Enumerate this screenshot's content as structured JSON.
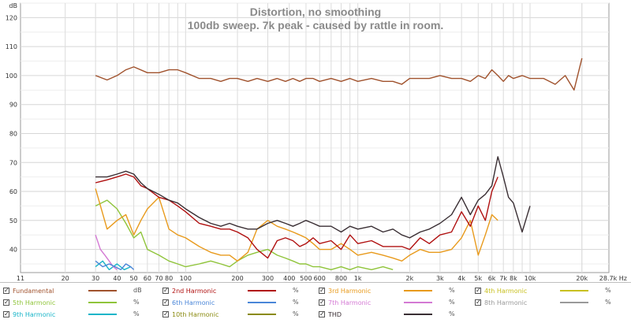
{
  "chart_data": {
    "type": "line",
    "title": "Distortion, no smoothing",
    "subtitle": "100db sweep. 7k peak - caused by rattle in room.",
    "ylabel_unit": "dB",
    "xlabel_unit": "28.7k Hz",
    "xscale": "log",
    "xlim": [
      11,
      28700
    ],
    "ylim": [
      32,
      125
    ],
    "grid": true,
    "y_ticks": [
      "40",
      "50",
      "60",
      "70",
      "80",
      "90",
      "100",
      "110",
      "120"
    ],
    "x_ticks": [
      {
        "v": 11,
        "t": "11"
      },
      {
        "v": 20,
        "t": "20"
      },
      {
        "v": 30,
        "t": "30"
      },
      {
        "v": 40,
        "t": "40"
      },
      {
        "v": 50,
        "t": "50"
      },
      {
        "v": 60,
        "t": "60"
      },
      {
        "v": 70,
        "t": "70"
      },
      {
        "v": 80,
        "t": "80"
      },
      {
        "v": 100,
        "t": "100"
      },
      {
        "v": 200,
        "t": "200"
      },
      {
        "v": 300,
        "t": "300"
      },
      {
        "v": 400,
        "t": "400"
      },
      {
        "v": 500,
        "t": "500"
      },
      {
        "v": 600,
        "t": "600"
      },
      {
        "v": 800,
        "t": "800"
      },
      {
        "v": 1000,
        "t": "1k"
      },
      {
        "v": 2000,
        "t": "2k"
      },
      {
        "v": 3000,
        "t": "3k"
      },
      {
        "v": 4000,
        "t": "4k"
      },
      {
        "v": 5000,
        "t": "5k"
      },
      {
        "v": 6000,
        "t": "6k"
      },
      {
        "v": 7000,
        "t": "7k"
      },
      {
        "v": 8000,
        "t": "8k"
      },
      {
        "v": 10000,
        "t": "10k"
      },
      {
        "v": 20000,
        "t": "20k"
      }
    ],
    "series": [
      {
        "name": "Fundamental",
        "color": "#a0522d",
        "unit": "dB",
        "x": [
          30,
          35,
          40,
          45,
          50,
          60,
          70,
          80,
          90,
          100,
          120,
          140,
          160,
          180,
          200,
          230,
          260,
          300,
          340,
          380,
          420,
          460,
          500,
          550,
          600,
          700,
          800,
          900,
          1000,
          1200,
          1400,
          1600,
          1800,
          2000,
          2300,
          2600,
          3000,
          3500,
          4000,
          4500,
          5000,
          5500,
          6000,
          6500,
          7000,
          7500,
          8000,
          9000,
          10000,
          12000,
          14000,
          16000,
          18000,
          20000
        ],
        "y": [
          100,
          98.5,
          100,
          102,
          103,
          101,
          101,
          102,
          102,
          101,
          99,
          99,
          98,
          99,
          99,
          98,
          99,
          98,
          99,
          98,
          99,
          98,
          99,
          99,
          98,
          99,
          98,
          99,
          98,
          99,
          98,
          98,
          97,
          99,
          99,
          99,
          100,
          99,
          99,
          98,
          100,
          99,
          102,
          100,
          98,
          100,
          99,
          100,
          99,
          99,
          97,
          100,
          95,
          106
        ]
      },
      {
        "name": "2nd Harmonic",
        "color": "#b01010",
        "unit": "%",
        "x": [
          30,
          35,
          40,
          45,
          50,
          55,
          60,
          70,
          80,
          90,
          100,
          120,
          140,
          160,
          180,
          200,
          230,
          260,
          300,
          340,
          380,
          420,
          460,
          500,
          550,
          600,
          700,
          800,
          900,
          1000,
          1200,
          1400,
          1600,
          1800,
          2000,
          2300,
          2600,
          3000,
          3500,
          4000,
          4500,
          5000,
          5500,
          6000,
          6500
        ],
        "y": [
          63,
          64,
          65,
          66,
          65,
          62,
          61,
          58,
          57,
          55,
          53,
          49,
          48,
          47,
          47,
          46,
          44,
          40,
          37,
          43,
          44,
          43,
          41,
          42,
          44,
          42,
          43,
          40,
          45,
          42,
          43,
          41,
          41,
          41,
          40,
          44,
          42,
          45,
          46,
          53,
          48,
          55,
          50,
          60,
          65
        ]
      },
      {
        "name": "3rd Harmonic",
        "color": "#e89a1c",
        "unit": "%",
        "x": [
          30,
          35,
          40,
          45,
          50,
          55,
          60,
          70,
          80,
          90,
          100,
          120,
          140,
          160,
          180,
          200,
          230,
          260,
          300,
          340,
          380,
          420,
          460,
          500,
          550,
          600,
          700,
          800,
          900,
          1000,
          1200,
          1400,
          1600,
          1800,
          2000,
          2300,
          2600,
          3000,
          3500,
          4000,
          4500,
          5000,
          5500,
          6000,
          6500
        ],
        "y": [
          61,
          47,
          50,
          52,
          45,
          50,
          54,
          58,
          47,
          45,
          44,
          41,
          39,
          38,
          38,
          36,
          39,
          47,
          50,
          48,
          47,
          46,
          45,
          44,
          42,
          40,
          40,
          42,
          40,
          38,
          39,
          38,
          37,
          36,
          38,
          40,
          39,
          39,
          40,
          44,
          50,
          38,
          45,
          52,
          50
        ]
      },
      {
        "name": "5th Harmonic",
        "color": "#8fc43a",
        "unit": "%",
        "x": [
          30,
          35,
          40,
          45,
          50,
          55,
          60,
          70,
          80,
          90,
          100,
          120,
          140,
          160,
          180,
          200,
          230,
          260,
          300,
          340,
          380,
          420,
          460,
          500,
          550,
          600,
          700,
          800,
          900,
          1000,
          1200,
          1400,
          1600
        ],
        "y": [
          55,
          57,
          54,
          49,
          44,
          46,
          40,
          38,
          36,
          35,
          34,
          35,
          36,
          35,
          34,
          36,
          38,
          39,
          40,
          38,
          37,
          36,
          35,
          35,
          34,
          34,
          33,
          34,
          33,
          34,
          33,
          34,
          33
        ]
      },
      {
        "name": "6th Harmonic",
        "color": "#4a86d8",
        "unit": "%",
        "x": [
          30,
          33,
          36,
          39,
          42,
          45,
          48,
          50
        ],
        "y": [
          36,
          34,
          35,
          34,
          33,
          35,
          34,
          33
        ]
      },
      {
        "name": "7th Harmonic",
        "color": "#d479d4",
        "unit": "%",
        "x": [
          30,
          32,
          34,
          36,
          38,
          40
        ],
        "y": [
          45,
          40,
          38,
          36,
          34,
          33
        ]
      },
      {
        "name": "9th Harmonic",
        "color": "#19b5c8",
        "unit": "%",
        "x": [
          30,
          33,
          36,
          40,
          44,
          48
        ],
        "y": [
          34,
          36,
          33,
          35,
          33,
          34
        ]
      },
      {
        "name": "THD",
        "color": "#3a2f34",
        "unit": "%",
        "x": [
          30,
          35,
          40,
          45,
          50,
          55,
          60,
          70,
          80,
          90,
          100,
          120,
          140,
          160,
          180,
          200,
          230,
          260,
          300,
          340,
          380,
          420,
          460,
          500,
          550,
          600,
          700,
          800,
          900,
          1000,
          1200,
          1400,
          1600,
          1800,
          2000,
          2300,
          2600,
          3000,
          3500,
          4000,
          4500,
          5000,
          5500,
          6000,
          6500,
          7000,
          7500,
          8000,
          9000,
          10000
        ],
        "y": [
          65,
          65,
          66,
          67,
          66,
          63,
          61,
          59,
          57,
          56,
          54,
          51,
          49,
          48,
          49,
          48,
          47,
          47,
          49,
          50,
          49,
          48,
          49,
          50,
          49,
          48,
          48,
          46,
          48,
          47,
          48,
          46,
          47,
          45,
          44,
          46,
          47,
          49,
          52,
          58,
          52,
          57,
          59,
          62,
          72,
          65,
          58,
          56,
          46,
          55
        ]
      }
    ]
  },
  "legend": [
    {
      "label": "Fundamental",
      "unit": "dB",
      "color": "#a0522d",
      "checked": true
    },
    {
      "label": "2nd Harmonic",
      "unit": "%",
      "color": "#b01010",
      "checked": true
    },
    {
      "label": "3rd Harmonic",
      "unit": "%",
      "color": "#e89a1c",
      "checked": true
    },
    {
      "label": "4th Harmonic",
      "unit": "%",
      "color": "#c8c020",
      "checked": true
    },
    {
      "label": "5th Harmonic",
      "unit": "%",
      "color": "#8fc43a",
      "checked": true
    },
    {
      "label": "6th Harmonic",
      "unit": "%",
      "color": "#4a86d8",
      "checked": true
    },
    {
      "label": "7th Harmonic",
      "unit": "%",
      "color": "#d479d4",
      "checked": true
    },
    {
      "label": "8th Harmonic",
      "unit": "%",
      "color": "#9a9a9a",
      "checked": true
    },
    {
      "label": "9th Harmonic",
      "unit": "%",
      "color": "#19b5c8",
      "checked": true
    },
    {
      "label": "10th Harmonic",
      "unit": "%",
      "color": "#8a8a10",
      "checked": true
    },
    {
      "label": "THD",
      "unit": "%",
      "color": "#3a2f34",
      "checked": true
    }
  ]
}
